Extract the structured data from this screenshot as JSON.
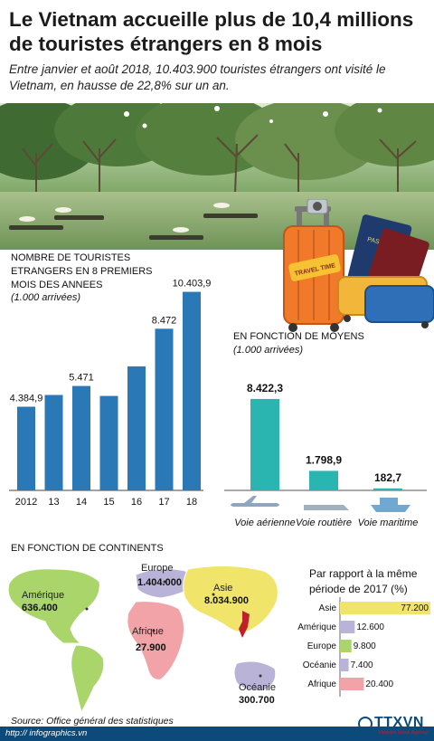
{
  "title": "Le Vietnam accueille plus de 10,4 millions de touristes étrangers en 8 mois",
  "subtitle": "Entre janvier et août 2018, 10.403.900 touristes étrangers ont visité le Vietnam, en hausse de 22,8% sur un an.",
  "luggage_sticker": "TRAVEL TIME",
  "passport_label": "PASSPORT",
  "colors": {
    "bar_blue": "#2a79b6",
    "bar_teal": "#2ab5b1",
    "footer": "#0b4a7a",
    "map_green": "#aad56a",
    "map_pink": "#f2a3a8",
    "map_purple": "#b9b3d8",
    "map_yellow": "#f0e56a",
    "map_orange": "#f2b05a"
  },
  "annual": {
    "title": "NOMBRE DE TOURISTES ETRANGERS EN 8 PREMIERS MOIS DES ANNEES",
    "unit": "(1.000 arrivées)"
  },
  "transport": {
    "title": "EN FONCTION DE MOYENS",
    "unit": "(1.000 arrivées)"
  },
  "continents": {
    "title": "EN FONCTION DE CONTINENTS",
    "regions": [
      {
        "name": "Amérique",
        "value": "636.400"
      },
      {
        "name": "Europe",
        "value": "1.404.000"
      },
      {
        "name": "Asie",
        "value": "8.034.900"
      },
      {
        "name": "Afrique",
        "value": "27.900"
      },
      {
        "name": "Océanie",
        "value": "300.700"
      }
    ]
  },
  "comparison": {
    "title": "Par rapport à la même période de 2017 (%)"
  },
  "chart_data": [
    {
      "type": "bar",
      "title": "NOMBRE DE TOURISTES ETRANGERS EN 8 PREMIERS MOIS DES ANNEES",
      "ylabel": "(1.000 arrivées)",
      "categories": [
        "2012",
        "13",
        "14",
        "15",
        "16",
        "17",
        "18"
      ],
      "values": [
        4384.9,
        5000,
        5471,
        4950,
        6500,
        8472,
        10403.9
      ],
      "labels": [
        "4.384,9",
        "",
        "5.471",
        "",
        "",
        "8.472",
        "10.403,9"
      ],
      "ylim": [
        0,
        11000
      ]
    },
    {
      "type": "bar",
      "title": "EN FONCTION DE MOYENS",
      "ylabel": "(1.000 arrivées)",
      "categories": [
        "Voie aérienne",
        "Voie routière",
        "Voie maritime"
      ],
      "values": [
        8422.3,
        1798.9,
        182.7
      ],
      "labels": [
        "8.422,3",
        "1.798,9",
        "182,7"
      ],
      "ylim": [
        0,
        9000
      ]
    },
    {
      "type": "bar",
      "title": "Par rapport à la même période de 2017 (%)",
      "categories": [
        "Asie",
        "Amérique",
        "Europe",
        "Océanie",
        "Afrique"
      ],
      "values": [
        77200,
        12600,
        9800,
        7400,
        20400
      ],
      "labels": [
        "77.200",
        "12.600",
        "9.800",
        "7.400",
        "20.400"
      ],
      "colors": [
        "#f0e56a",
        "#b9b3d8",
        "#aad56a",
        "#b9b3d8",
        "#f2a3a8"
      ]
    }
  ],
  "source": "Source: Office général des statistiques",
  "footer_link": "http:// infographics.vn",
  "logo": {
    "name": "TTXVN",
    "sub": "Vietnam News Agency"
  }
}
